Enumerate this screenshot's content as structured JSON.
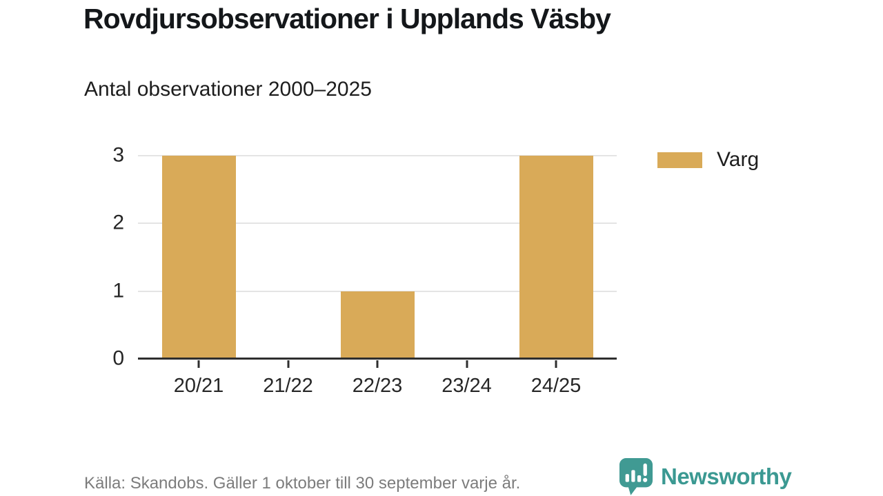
{
  "header": {
    "title": "Rovdjursobservationer i Upplands Väsby",
    "subtitle": "Antal observationer 2000–2025"
  },
  "chart_data": {
    "type": "bar",
    "categories": [
      "20/21",
      "21/22",
      "22/23",
      "23/24",
      "24/25"
    ],
    "series": [
      {
        "name": "Varg",
        "values": [
          3,
          0,
          1,
          0,
          3
        ]
      }
    ],
    "title": "Rovdjursobservationer i Upplands Väsby",
    "subtitle": "Antal observationer 2000–2025",
    "xlabel": "",
    "ylabel": "",
    "ylim": [
      0,
      3
    ],
    "yticks": [
      0,
      1,
      2,
      3
    ],
    "grid": "horizontal",
    "legend_position": "top-right",
    "bar_color": "#d9aa58"
  },
  "legend": {
    "items": [
      {
        "label": "Varg",
        "color": "#d9aa58"
      }
    ]
  },
  "footer": {
    "source": "Källa: Skandobs. Gäller 1 oktober till 30 september varje år.",
    "brand": "Newsworthy"
  },
  "colors": {
    "bar": "#d9aa58",
    "brand_teal": "#3b9992",
    "axis": "#2e2e2e",
    "grid": "#e4e4e4",
    "text": "#1d1d1d",
    "muted": "#7c7c7c"
  }
}
